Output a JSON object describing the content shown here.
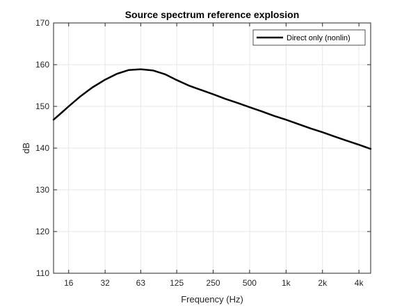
{
  "chart_data": {
    "type": "line",
    "title": "Source spectrum reference explosion",
    "xlabel": "Frequency (Hz)",
    "ylabel": "dB",
    "x_scale": "log",
    "xlim": [
      12,
      5000
    ],
    "ylim": [
      110,
      170
    ],
    "x_ticks": [
      {
        "value": 16,
        "label": "16"
      },
      {
        "value": 32,
        "label": "32"
      },
      {
        "value": 63,
        "label": "63"
      },
      {
        "value": 125,
        "label": "125"
      },
      {
        "value": 250,
        "label": "250"
      },
      {
        "value": 500,
        "label": "500"
      },
      {
        "value": 1000,
        "label": "1k"
      },
      {
        "value": 2000,
        "label": "2k"
      },
      {
        "value": 4000,
        "label": "4k"
      }
    ],
    "y_ticks": [
      {
        "value": 110,
        "label": "110"
      },
      {
        "value": 120,
        "label": "120"
      },
      {
        "value": 130,
        "label": "130"
      },
      {
        "value": 140,
        "label": "140"
      },
      {
        "value": 150,
        "label": "150"
      },
      {
        "value": 160,
        "label": "160"
      },
      {
        "value": 170,
        "label": "170"
      }
    ],
    "grid": true,
    "legend_position": "top-right",
    "series": [
      {
        "name": "Direct only (nonlin)",
        "color": "#000000",
        "x": [
          12,
          14,
          16,
          20,
          25,
          32,
          40,
          50,
          63,
          80,
          100,
          125,
          160,
          200,
          250,
          315,
          400,
          500,
          630,
          800,
          1000,
          1250,
          1600,
          2000,
          2500,
          3150,
          4000,
          5000
        ],
        "y": [
          146.8,
          148.5,
          150.0,
          152.4,
          154.5,
          156.4,
          157.8,
          158.7,
          158.9,
          158.6,
          157.7,
          156.3,
          154.9,
          153.9,
          152.9,
          151.8,
          150.8,
          149.8,
          148.8,
          147.7,
          146.8,
          145.8,
          144.7,
          143.8,
          142.8,
          141.8,
          140.8,
          139.8
        ]
      }
    ]
  }
}
